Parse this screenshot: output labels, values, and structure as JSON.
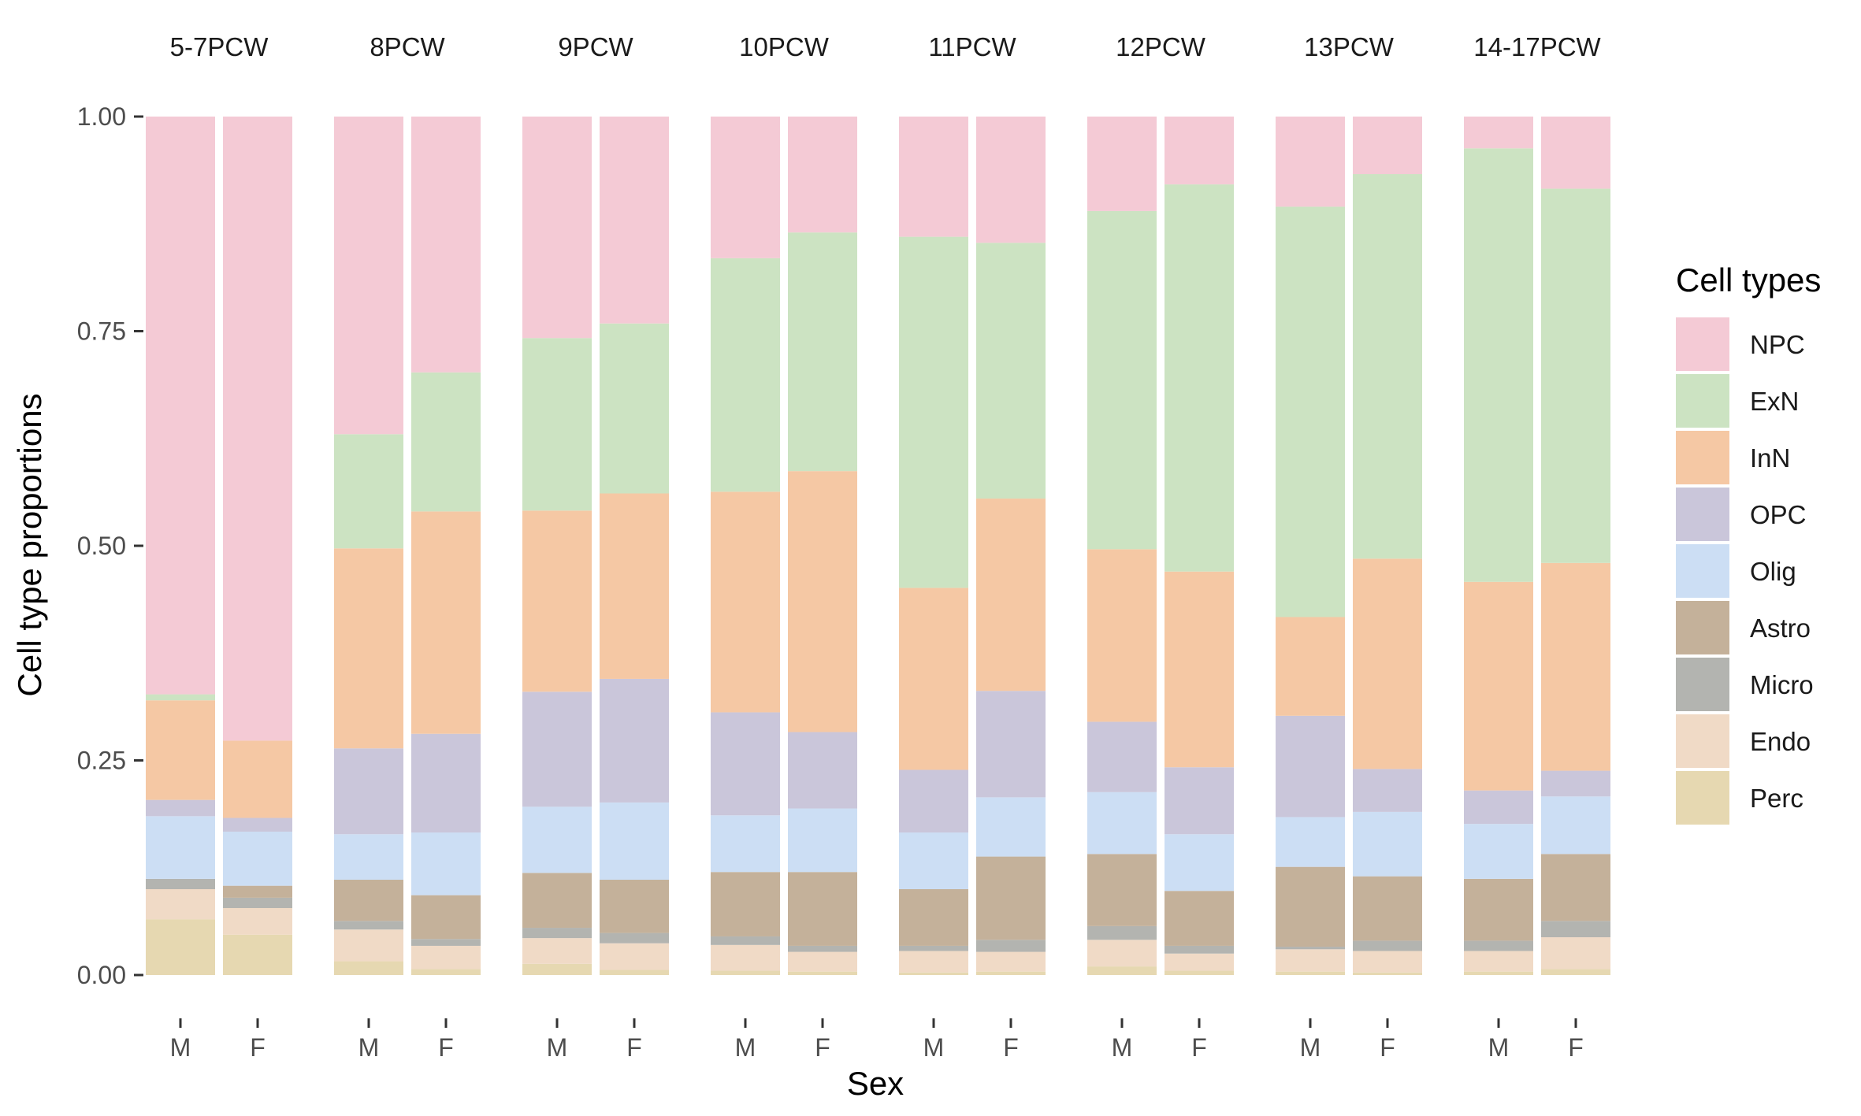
{
  "chart_data": {
    "type": "bar",
    "stacked": true,
    "facets": [
      "5-7PCW",
      "8PCW",
      "9PCW",
      "10PCW",
      "11PCW",
      "12PCW",
      "13PCW",
      "14-17PCW"
    ],
    "categories": [
      "M",
      "F"
    ],
    "xlabel": "Sex",
    "ylabel": "Cell type proportions",
    "ylim": [
      0,
      1
    ],
    "yticks": [
      "0.00",
      "0.25",
      "0.50",
      "0.75",
      "1.00"
    ],
    "ytick_values": [
      0,
      0.25,
      0.5,
      0.75,
      1.0
    ],
    "grid": false,
    "legend": {
      "title": "Cell types",
      "position": "right"
    },
    "series": [
      {
        "name": "Perc",
        "color": "#E6D8B1",
        "values": [
          [
            0.065,
            0.047
          ],
          [
            0.016,
            0.007
          ],
          [
            0.013,
            0.006
          ],
          [
            0.005,
            0.004
          ],
          [
            0.003,
            0.004
          ],
          [
            0.01,
            0.005
          ],
          [
            0.004,
            0.003
          ],
          [
            0.004,
            0.007
          ]
        ]
      },
      {
        "name": "Endo",
        "color": "#F0DAC6",
        "values": [
          [
            0.035,
            0.031
          ],
          [
            0.037,
            0.027
          ],
          [
            0.03,
            0.031
          ],
          [
            0.03,
            0.023
          ],
          [
            0.025,
            0.023
          ],
          [
            0.031,
            0.02
          ],
          [
            0.026,
            0.025
          ],
          [
            0.024,
            0.037
          ]
        ]
      },
      {
        "name": "Micro",
        "color": "#B3B4B0",
        "values": [
          [
            0.012,
            0.012
          ],
          [
            0.01,
            0.008
          ],
          [
            0.012,
            0.012
          ],
          [
            0.01,
            0.007
          ],
          [
            0.006,
            0.014
          ],
          [
            0.016,
            0.009
          ],
          [
            0.003,
            0.012
          ],
          [
            0.012,
            0.019
          ]
        ]
      },
      {
        "name": "Astro",
        "color": "#C4B19A",
        "values": [
          [
            0.0,
            0.014
          ],
          [
            0.048,
            0.051
          ],
          [
            0.064,
            0.062
          ],
          [
            0.075,
            0.086
          ],
          [
            0.066,
            0.097
          ],
          [
            0.084,
            0.064
          ],
          [
            0.093,
            0.075
          ],
          [
            0.072,
            0.078
          ]
        ]
      },
      {
        "name": "Olig",
        "color": "#CCDEF4",
        "values": [
          [
            0.073,
            0.063
          ],
          [
            0.053,
            0.073
          ],
          [
            0.077,
            0.09
          ],
          [
            0.066,
            0.074
          ],
          [
            0.066,
            0.069
          ],
          [
            0.072,
            0.066
          ],
          [
            0.058,
            0.075
          ],
          [
            0.064,
            0.067
          ]
        ]
      },
      {
        "name": "OPC",
        "color": "#CAC6DA",
        "values": [
          [
            0.019,
            0.016
          ],
          [
            0.1,
            0.115
          ],
          [
            0.134,
            0.144
          ],
          [
            0.12,
            0.089
          ],
          [
            0.073,
            0.124
          ],
          [
            0.082,
            0.078
          ],
          [
            0.118,
            0.05
          ],
          [
            0.039,
            0.03
          ]
        ]
      },
      {
        "name": "InN",
        "color": "#F5C8A4",
        "values": [
          [
            0.116,
            0.09
          ],
          [
            0.233,
            0.259
          ],
          [
            0.211,
            0.216
          ],
          [
            0.257,
            0.304
          ],
          [
            0.212,
            0.224
          ],
          [
            0.201,
            0.228
          ],
          [
            0.115,
            0.245
          ],
          [
            0.243,
            0.242
          ]
        ]
      },
      {
        "name": "ExN",
        "color": "#CCE3C2",
        "values": [
          [
            0.007,
            0.0
          ],
          [
            0.133,
            0.162
          ],
          [
            0.201,
            0.198
          ],
          [
            0.272,
            0.278
          ],
          [
            0.409,
            0.298
          ],
          [
            0.394,
            0.451
          ],
          [
            0.478,
            0.448
          ],
          [
            0.505,
            0.436
          ]
        ]
      },
      {
        "name": "NPC",
        "color": "#F4CAD5",
        "values": [
          [
            0.673,
            0.727
          ],
          [
            0.37,
            0.298
          ],
          [
            0.258,
            0.241
          ],
          [
            0.165,
            0.135
          ],
          [
            0.14,
            0.147
          ],
          [
            0.11,
            0.079
          ],
          [
            0.105,
            0.067
          ],
          [
            0.037,
            0.084
          ]
        ]
      }
    ]
  }
}
